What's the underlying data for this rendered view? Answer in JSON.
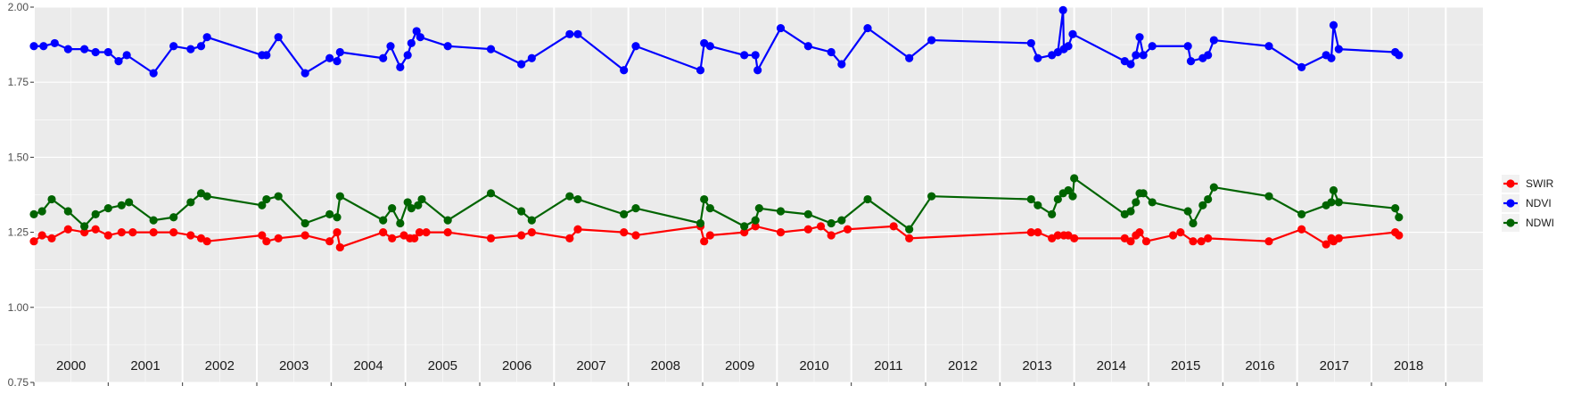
{
  "chart_data": {
    "type": "line",
    "title": "",
    "xlabel": "",
    "ylabel": "",
    "ylim": [
      0.75,
      2.0
    ],
    "xlim": [
      1999.5,
      2019.0
    ],
    "y_ticks": [
      "0.75",
      "1.00",
      "1.25",
      "1.50",
      "1.75",
      "2.00"
    ],
    "x_tick_labels": [
      "2000",
      "2001",
      "2002",
      "2003",
      "2004",
      "2005",
      "2006",
      "2007",
      "2008",
      "2009",
      "2010",
      "2011",
      "2012",
      "2013",
      "2014",
      "2015",
      "2016",
      "2017",
      "2018"
    ],
    "grid": true,
    "legend_position": "right",
    "colors": {
      "SWIR": "#ff0000",
      "NDVI": "#0000ff",
      "NDWI": "#006400",
      "panel": "#ebebeb",
      "grid": "#ffffff"
    },
    "series": [
      {
        "name": "SWIR",
        "points": [
          [
            1999.5,
            1.22
          ],
          [
            1999.61,
            1.24
          ],
          [
            1999.74,
            1.23
          ],
          [
            1999.96,
            1.26
          ],
          [
            2000.18,
            1.25
          ],
          [
            2000.33,
            1.26
          ],
          [
            2000.5,
            1.24
          ],
          [
            2000.68,
            1.25
          ],
          [
            2000.83,
            1.25
          ],
          [
            2001.11,
            1.25
          ],
          [
            2001.38,
            1.25
          ],
          [
            2001.61,
            1.24
          ],
          [
            2001.75,
            1.23
          ],
          [
            2001.83,
            1.22
          ],
          [
            2002.57,
            1.24
          ],
          [
            2002.63,
            1.22
          ],
          [
            2002.79,
            1.23
          ],
          [
            2003.15,
            1.24
          ],
          [
            2003.48,
            1.22
          ],
          [
            2003.58,
            1.25
          ],
          [
            2003.62,
            1.2
          ],
          [
            2004.2,
            1.25
          ],
          [
            2004.32,
            1.23
          ],
          [
            2004.48,
            1.24
          ],
          [
            2004.56,
            1.23
          ],
          [
            2004.62,
            1.23
          ],
          [
            2004.69,
            1.25
          ],
          [
            2004.78,
            1.25
          ],
          [
            2005.07,
            1.25
          ],
          [
            2005.65,
            1.23
          ],
          [
            2006.06,
            1.24
          ],
          [
            2006.2,
            1.25
          ],
          [
            2006.71,
            1.23
          ],
          [
            2006.82,
            1.26
          ],
          [
            2007.44,
            1.25
          ],
          [
            2007.6,
            1.24
          ],
          [
            2008.47,
            1.27
          ],
          [
            2008.52,
            1.22
          ],
          [
            2008.6,
            1.24
          ],
          [
            2009.06,
            1.25
          ],
          [
            2009.21,
            1.27
          ],
          [
            2009.55,
            1.25
          ],
          [
            2009.92,
            1.26
          ],
          [
            2010.09,
            1.27
          ],
          [
            2010.23,
            1.24
          ],
          [
            2010.45,
            1.26
          ],
          [
            2011.07,
            1.27
          ],
          [
            2011.28,
            1.23
          ],
          [
            2012.92,
            1.25
          ],
          [
            2013.01,
            1.25
          ],
          [
            2013.2,
            1.23
          ],
          [
            2013.28,
            1.24
          ],
          [
            2013.36,
            1.24
          ],
          [
            2013.42,
            1.24
          ],
          [
            2013.5,
            1.23
          ],
          [
            2014.18,
            1.23
          ],
          [
            2014.26,
            1.22
          ],
          [
            2014.33,
            1.24
          ],
          [
            2014.38,
            1.25
          ],
          [
            2014.47,
            1.22
          ],
          [
            2014.83,
            1.24
          ],
          [
            2014.93,
            1.25
          ],
          [
            2015.1,
            1.22
          ],
          [
            2015.21,
            1.22
          ],
          [
            2015.3,
            1.23
          ],
          [
            2016.12,
            1.22
          ],
          [
            2016.56,
            1.26
          ],
          [
            2016.89,
            1.21
          ],
          [
            2016.96,
            1.23
          ],
          [
            2016.99,
            1.22
          ],
          [
            2017.06,
            1.23
          ],
          [
            2017.82,
            1.25
          ],
          [
            2017.87,
            1.24
          ]
        ]
      },
      {
        "name": "NDVI",
        "points": [
          [
            1999.5,
            1.87
          ],
          [
            1999.63,
            1.87
          ],
          [
            1999.78,
            1.88
          ],
          [
            1999.96,
            1.86
          ],
          [
            2000.18,
            1.86
          ],
          [
            2000.33,
            1.85
          ],
          [
            2000.5,
            1.85
          ],
          [
            2000.64,
            1.82
          ],
          [
            2000.75,
            1.84
          ],
          [
            2001.11,
            1.78
          ],
          [
            2001.38,
            1.87
          ],
          [
            2001.61,
            1.86
          ],
          [
            2001.75,
            1.87
          ],
          [
            2001.83,
            1.9
          ],
          [
            2002.57,
            1.84
          ],
          [
            2002.63,
            1.84
          ],
          [
            2002.79,
            1.9
          ],
          [
            2003.15,
            1.78
          ],
          [
            2003.48,
            1.83
          ],
          [
            2003.58,
            1.82
          ],
          [
            2003.62,
            1.85
          ],
          [
            2004.2,
            1.83
          ],
          [
            2004.3,
            1.87
          ],
          [
            2004.43,
            1.8
          ],
          [
            2004.53,
            1.84
          ],
          [
            2004.58,
            1.88
          ],
          [
            2004.65,
            1.92
          ],
          [
            2004.7,
            1.9
          ],
          [
            2005.07,
            1.87
          ],
          [
            2005.65,
            1.86
          ],
          [
            2006.06,
            1.81
          ],
          [
            2006.2,
            1.83
          ],
          [
            2006.71,
            1.91
          ],
          [
            2006.82,
            1.91
          ],
          [
            2007.44,
            1.79
          ],
          [
            2007.6,
            1.87
          ],
          [
            2008.47,
            1.79
          ],
          [
            2008.52,
            1.88
          ],
          [
            2008.6,
            1.87
          ],
          [
            2009.06,
            1.84
          ],
          [
            2009.21,
            1.84
          ],
          [
            2009.24,
            1.79
          ],
          [
            2009.55,
            1.93
          ],
          [
            2009.92,
            1.87
          ],
          [
            2010.23,
            1.85
          ],
          [
            2010.37,
            1.81
          ],
          [
            2010.72,
            1.93
          ],
          [
            2011.28,
            1.83
          ],
          [
            2011.58,
            1.89
          ],
          [
            2012.92,
            1.88
          ],
          [
            2013.01,
            1.83
          ],
          [
            2013.2,
            1.84
          ],
          [
            2013.28,
            1.85
          ],
          [
            2013.35,
            1.99
          ],
          [
            2013.36,
            1.86
          ],
          [
            2013.42,
            1.87
          ],
          [
            2013.48,
            1.91
          ],
          [
            2014.18,
            1.82
          ],
          [
            2014.26,
            1.81
          ],
          [
            2014.33,
            1.84
          ],
          [
            2014.38,
            1.9
          ],
          [
            2014.43,
            1.84
          ],
          [
            2014.55,
            1.87
          ],
          [
            2015.03,
            1.87
          ],
          [
            2015.07,
            1.82
          ],
          [
            2015.23,
            1.83
          ],
          [
            2015.3,
            1.84
          ],
          [
            2015.38,
            1.89
          ],
          [
            2016.12,
            1.87
          ],
          [
            2016.56,
            1.8
          ],
          [
            2016.89,
            1.84
          ],
          [
            2016.96,
            1.83
          ],
          [
            2016.99,
            1.94
          ],
          [
            2017.06,
            1.86
          ],
          [
            2017.82,
            1.85
          ],
          [
            2017.87,
            1.84
          ]
        ]
      },
      {
        "name": "NDWI",
        "points": [
          [
            1999.5,
            1.31
          ],
          [
            1999.61,
            1.32
          ],
          [
            1999.74,
            1.36
          ],
          [
            1999.96,
            1.32
          ],
          [
            2000.18,
            1.27
          ],
          [
            2000.33,
            1.31
          ],
          [
            2000.5,
            1.33
          ],
          [
            2000.68,
            1.34
          ],
          [
            2000.78,
            1.35
          ],
          [
            2001.11,
            1.29
          ],
          [
            2001.38,
            1.3
          ],
          [
            2001.61,
            1.35
          ],
          [
            2001.75,
            1.38
          ],
          [
            2001.83,
            1.37
          ],
          [
            2002.57,
            1.34
          ],
          [
            2002.63,
            1.36
          ],
          [
            2002.79,
            1.37
          ],
          [
            2003.15,
            1.28
          ],
          [
            2003.48,
            1.31
          ],
          [
            2003.58,
            1.3
          ],
          [
            2003.62,
            1.37
          ],
          [
            2004.2,
            1.29
          ],
          [
            2004.32,
            1.33
          ],
          [
            2004.43,
            1.28
          ],
          [
            2004.53,
            1.35
          ],
          [
            2004.58,
            1.33
          ],
          [
            2004.67,
            1.34
          ],
          [
            2004.72,
            1.36
          ],
          [
            2005.07,
            1.29
          ],
          [
            2005.65,
            1.38
          ],
          [
            2006.06,
            1.32
          ],
          [
            2006.2,
            1.29
          ],
          [
            2006.71,
            1.37
          ],
          [
            2006.82,
            1.36
          ],
          [
            2007.44,
            1.31
          ],
          [
            2007.6,
            1.33
          ],
          [
            2008.47,
            1.28
          ],
          [
            2008.52,
            1.36
          ],
          [
            2008.6,
            1.33
          ],
          [
            2009.06,
            1.27
          ],
          [
            2009.21,
            1.29
          ],
          [
            2009.26,
            1.33
          ],
          [
            2009.55,
            1.32
          ],
          [
            2009.92,
            1.31
          ],
          [
            2010.23,
            1.28
          ],
          [
            2010.37,
            1.29
          ],
          [
            2010.72,
            1.36
          ],
          [
            2011.28,
            1.26
          ],
          [
            2011.58,
            1.37
          ],
          [
            2012.92,
            1.36
          ],
          [
            2013.01,
            1.34
          ],
          [
            2013.2,
            1.31
          ],
          [
            2013.28,
            1.36
          ],
          [
            2013.35,
            1.38
          ],
          [
            2013.42,
            1.39
          ],
          [
            2013.48,
            1.37
          ],
          [
            2013.5,
            1.43
          ],
          [
            2014.18,
            1.31
          ],
          [
            2014.26,
            1.32
          ],
          [
            2014.33,
            1.35
          ],
          [
            2014.38,
            1.38
          ],
          [
            2014.43,
            1.38
          ],
          [
            2014.55,
            1.35
          ],
          [
            2015.03,
            1.32
          ],
          [
            2015.1,
            1.28
          ],
          [
            2015.23,
            1.34
          ],
          [
            2015.3,
            1.36
          ],
          [
            2015.38,
            1.4
          ],
          [
            2016.12,
            1.37
          ],
          [
            2016.56,
            1.31
          ],
          [
            2016.89,
            1.34
          ],
          [
            2016.96,
            1.35
          ],
          [
            2016.99,
            1.39
          ],
          [
            2017.06,
            1.35
          ],
          [
            2017.82,
            1.33
          ],
          [
            2017.87,
            1.3
          ]
        ]
      }
    ]
  }
}
